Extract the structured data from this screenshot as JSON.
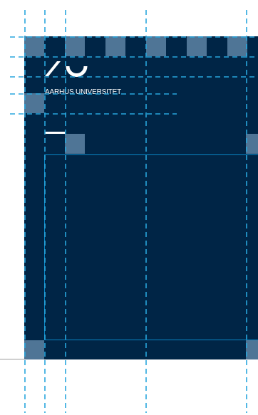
{
  "brand": {
    "university_name": "AARHUS UNIVERSITET",
    "logo_icon": "au-logo-mark"
  },
  "colors": {
    "page_background": "#002546",
    "module_square": "#4f7596",
    "layout_line": "#0a86c4",
    "guide_line": "#29a6dd",
    "logo": "#ffffff"
  }
}
